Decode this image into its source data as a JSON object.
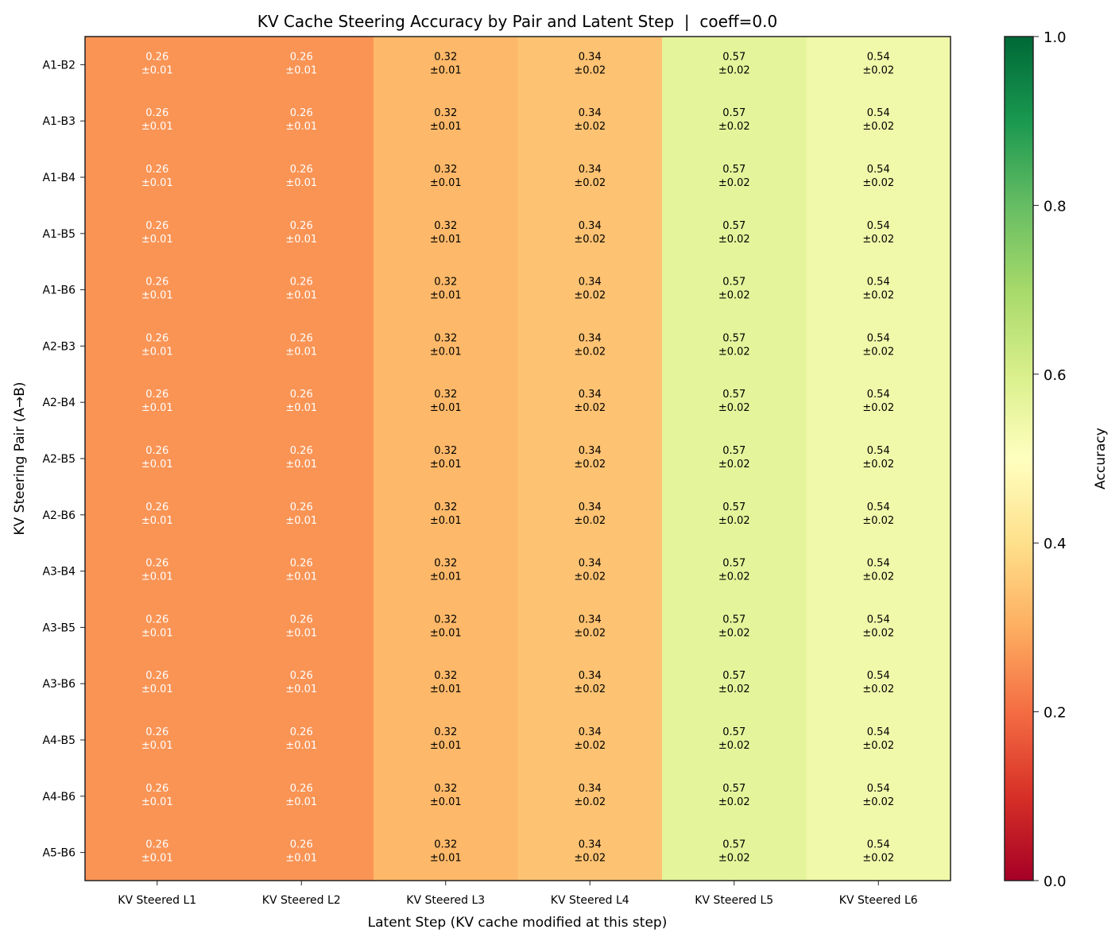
{
  "chart_data": {
    "type": "heatmap",
    "title": "KV Cache Steering Accuracy by Pair and Latent Step  |  coeff=0.0",
    "xlabel": "Latent Step (KV cache modified at this step)",
    "ylabel": "KV Steering Pair (A→B)",
    "columns": [
      "KV Steered L1",
      "KV Steered L2",
      "KV Steered L3",
      "KV Steered L4",
      "KV Steered L5",
      "KV Steered L6"
    ],
    "rows": [
      "A1-B2",
      "A1-B3",
      "A1-B4",
      "A1-B5",
      "A1-B6",
      "A2-B3",
      "A2-B4",
      "A2-B5",
      "A2-B6",
      "A3-B4",
      "A3-B5",
      "A3-B6",
      "A4-B5",
      "A4-B6",
      "A5-B6"
    ],
    "values": [
      [
        0.26,
        0.26,
        0.32,
        0.34,
        0.57,
        0.54
      ],
      [
        0.26,
        0.26,
        0.32,
        0.34,
        0.57,
        0.54
      ],
      [
        0.26,
        0.26,
        0.32,
        0.34,
        0.57,
        0.54
      ],
      [
        0.26,
        0.26,
        0.32,
        0.34,
        0.57,
        0.54
      ],
      [
        0.26,
        0.26,
        0.32,
        0.34,
        0.57,
        0.54
      ],
      [
        0.26,
        0.26,
        0.32,
        0.34,
        0.57,
        0.54
      ],
      [
        0.26,
        0.26,
        0.32,
        0.34,
        0.57,
        0.54
      ],
      [
        0.26,
        0.26,
        0.32,
        0.34,
        0.57,
        0.54
      ],
      [
        0.26,
        0.26,
        0.32,
        0.34,
        0.57,
        0.54
      ],
      [
        0.26,
        0.26,
        0.32,
        0.34,
        0.57,
        0.54
      ],
      [
        0.26,
        0.26,
        0.32,
        0.34,
        0.57,
        0.54
      ],
      [
        0.26,
        0.26,
        0.32,
        0.34,
        0.57,
        0.54
      ],
      [
        0.26,
        0.26,
        0.32,
        0.34,
        0.57,
        0.54
      ],
      [
        0.26,
        0.26,
        0.32,
        0.34,
        0.57,
        0.54
      ],
      [
        0.26,
        0.26,
        0.32,
        0.34,
        0.57,
        0.54
      ]
    ],
    "errors": [
      [
        0.01,
        0.01,
        0.01,
        0.02,
        0.02,
        0.02
      ],
      [
        0.01,
        0.01,
        0.01,
        0.02,
        0.02,
        0.02
      ],
      [
        0.01,
        0.01,
        0.01,
        0.02,
        0.02,
        0.02
      ],
      [
        0.01,
        0.01,
        0.01,
        0.02,
        0.02,
        0.02
      ],
      [
        0.01,
        0.01,
        0.01,
        0.02,
        0.02,
        0.02
      ],
      [
        0.01,
        0.01,
        0.01,
        0.02,
        0.02,
        0.02
      ],
      [
        0.01,
        0.01,
        0.01,
        0.02,
        0.02,
        0.02
      ],
      [
        0.01,
        0.01,
        0.01,
        0.02,
        0.02,
        0.02
      ],
      [
        0.01,
        0.01,
        0.01,
        0.02,
        0.02,
        0.02
      ],
      [
        0.01,
        0.01,
        0.01,
        0.02,
        0.02,
        0.02
      ],
      [
        0.01,
        0.01,
        0.01,
        0.02,
        0.02,
        0.02
      ],
      [
        0.01,
        0.01,
        0.01,
        0.02,
        0.02,
        0.02
      ],
      [
        0.01,
        0.01,
        0.01,
        0.02,
        0.02,
        0.02
      ],
      [
        0.01,
        0.01,
        0.01,
        0.02,
        0.02,
        0.02
      ],
      [
        0.01,
        0.01,
        0.01,
        0.02,
        0.02,
        0.02
      ]
    ],
    "colormap": "RdYlGn",
    "vmin": 0.0,
    "vmax": 1.0,
    "colorbar": {
      "label": "Accuracy",
      "ticks": [
        "0.0",
        "0.2",
        "0.4",
        "0.6",
        "0.8",
        "1.0"
      ],
      "tick_values": [
        0,
        0.2,
        0.4,
        0.6,
        0.8,
        1.0
      ]
    },
    "colormap_stops": [
      "#a50026",
      "#d73027",
      "#f46d43",
      "#fdae61",
      "#fee08b",
      "#ffffbf",
      "#d9ef8b",
      "#a6d96a",
      "#66bd63",
      "#1a9850",
      "#006837"
    ]
  }
}
